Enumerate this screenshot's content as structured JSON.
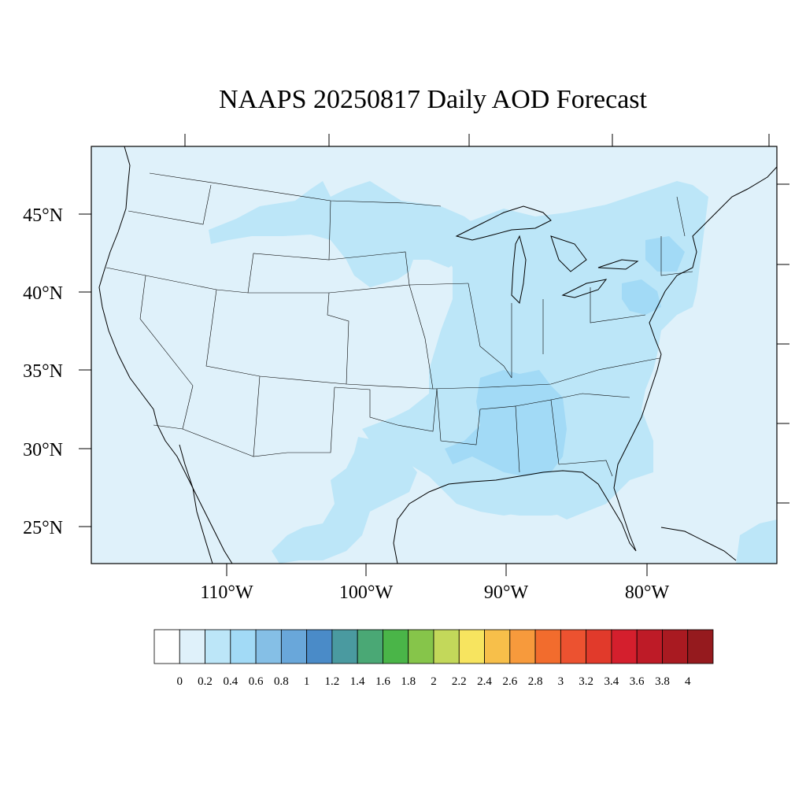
{
  "title": "NAAPS 20250817 Daily AOD Forecast",
  "map": {
    "region": "Continental United States",
    "projection": "equidistant-cylindrical-style",
    "lon_range": [
      -119,
      -72
    ],
    "lat_range": [
      22.5,
      49
    ],
    "lat_labels": [
      "25°N",
      "30°N",
      "35°N",
      "40°N",
      "45°N"
    ],
    "lon_labels": [
      "110°W",
      "100°W",
      "90°W",
      "80°W"
    ],
    "ocean_color": "#dff1fa",
    "field": "AOD",
    "regions": [
      {
        "name": "lower-mississippi-valley",
        "aod_level": "0.4-0.6",
        "color": "#a2daf6"
      },
      {
        "name": "southeast",
        "aod_level": "0.2-0.4",
        "color": "#bce6f8"
      },
      {
        "name": "ohio-valley",
        "aod_level": "0.2-0.4",
        "color": "#bce6f8"
      },
      {
        "name": "northeast",
        "aod_level": "0.2-0.4",
        "color": "#bce6f8"
      },
      {
        "name": "mid-atlantic",
        "aod_level": "0.4-0.6",
        "color": "#a2daf6"
      },
      {
        "name": "northern-plains",
        "aod_level": "0.2-0.4",
        "color": "#bce6f8"
      },
      {
        "name": "texas-mexico",
        "aod_level": "0.2-0.4",
        "color": "#bce6f8"
      },
      {
        "name": "west",
        "aod_level": "0-0.2",
        "color": "#dff1fa"
      }
    ]
  },
  "colorbar": {
    "labels": [
      "0",
      "0.2",
      "0.4",
      "0.6",
      "0.8",
      "1",
      "1.2",
      "1.4",
      "1.6",
      "1.8",
      "2",
      "2.2",
      "2.4",
      "2.6",
      "2.8",
      "3",
      "3.2",
      "3.4",
      "3.6",
      "3.8",
      "4"
    ],
    "colors": [
      "#ffffff",
      "#dff1fa",
      "#bce6f8",
      "#a2daf6",
      "#85bfe6",
      "#69a7da",
      "#4a8bc8",
      "#4a9aa0",
      "#4aa875",
      "#4ab548",
      "#86c54a",
      "#c3d85a",
      "#f7e45f",
      "#f7bf4a",
      "#f79a3c",
      "#f26c2d",
      "#ec5230",
      "#e13a2b",
      "#d41f2d",
      "#be1b27",
      "#a91a21",
      "#951a1e"
    ]
  }
}
